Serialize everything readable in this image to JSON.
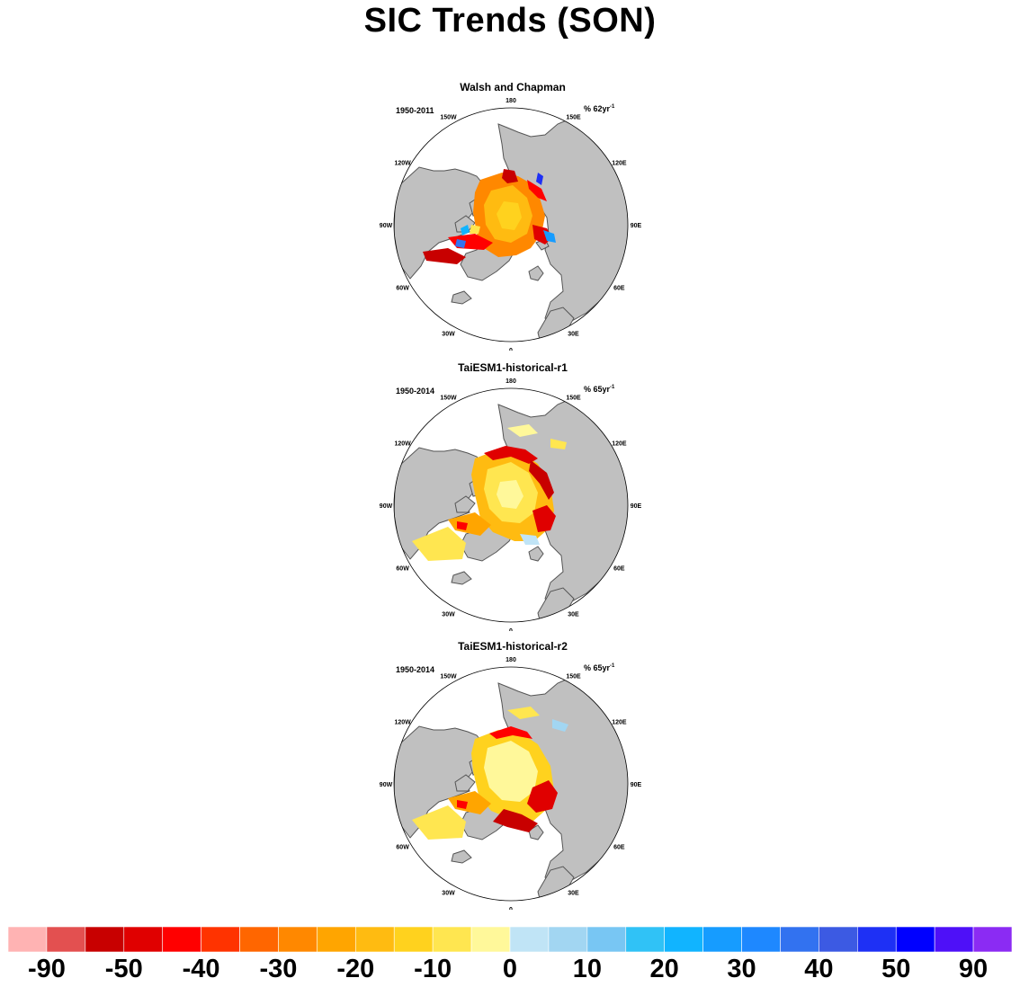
{
  "title": "SIC Trends (SON)",
  "panels": [
    {
      "title": "Walsh and Chapman",
      "period": "1950-2011",
      "units_prefix": "% 62yr",
      "units_sup": "-1",
      "pattern": "obs"
    },
    {
      "title": "TaiESM1-historical-r1",
      "period": "1950-2014",
      "units_prefix": "% 65yr",
      "units_sup": "-1",
      "pattern": "model1"
    },
    {
      "title": "TaiESM1-historical-r2",
      "period": "1950-2014",
      "units_prefix": "% 65yr",
      "units_sup": "-1",
      "pattern": "model2"
    }
  ],
  "longitude_labels": [
    "180",
    "150E",
    "120E",
    "90E",
    "60E",
    "30E",
    "0",
    "30W",
    "60W",
    "90W",
    "120W",
    "150W"
  ],
  "colorbar": {
    "colors": [
      "#ffb3b3",
      "#e35050",
      "#c80000",
      "#e00000",
      "#ff0000",
      "#ff3300",
      "#ff6600",
      "#ff8800",
      "#ffa500",
      "#ffbb11",
      "#ffd21e",
      "#ffe650",
      "#fff89a",
      "#c0e4f6",
      "#a2d6f2",
      "#78c6f3",
      "#30c2f6",
      "#11b4ff",
      "#169cff",
      "#1e88ff",
      "#3272f0",
      "#3c5ae3",
      "#1e30f5",
      "#0000ff",
      "#4e10f8",
      "#8b2bf3"
    ],
    "labels": [
      "-90",
      "-50",
      "-40",
      "-30",
      "-20",
      "-10",
      "0",
      "10",
      "20",
      "30",
      "40",
      "50",
      "90"
    ]
  },
  "colors": {
    "land": "#c0c0c0",
    "coast": "#555555",
    "ocean": "#ffffff"
  }
}
